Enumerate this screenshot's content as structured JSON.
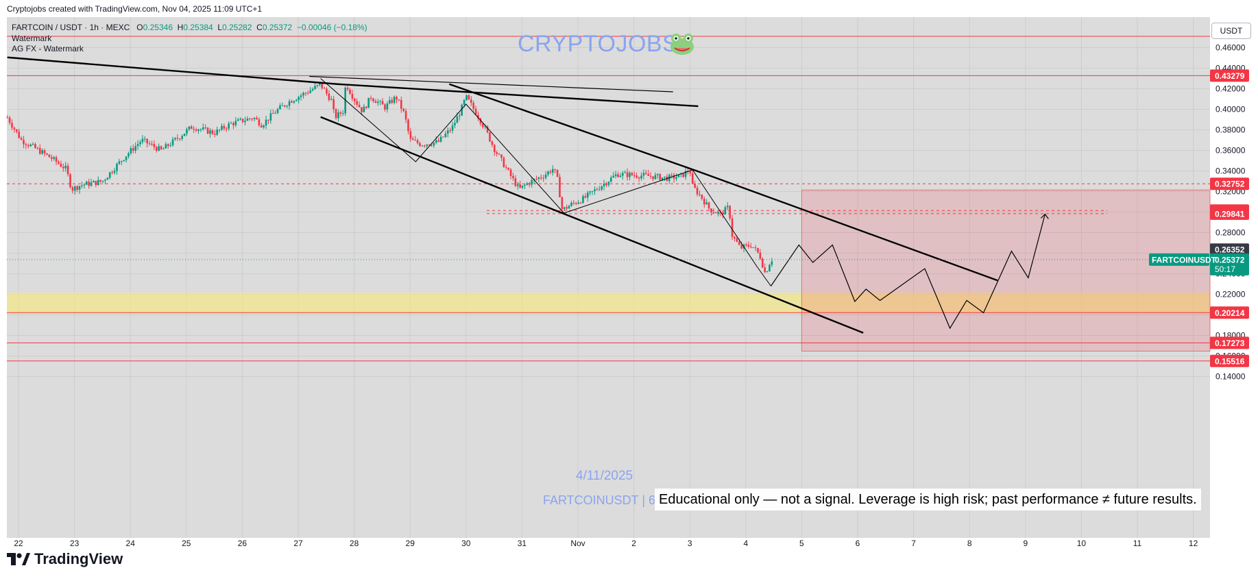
{
  "header": {
    "attribution": "Cryptojobs created with TradingView.com, Nov 04, 2025 11:09 UTC+1"
  },
  "legend": {
    "pair": "FARTCOIN / USDT · 1h · MEXC",
    "o_label": "O",
    "o": "0.25346",
    "h_label": "H",
    "h": "0.25384",
    "l_label": "L",
    "l": "0.25282",
    "c_label": "C",
    "c": "0.25372",
    "change": "−0.00046 (−0.18%)",
    "indicator_1": "Watermark",
    "indicator_2": "AG FX - Watermark"
  },
  "watermarks": {
    "title": "CRYPTOJOBS",
    "date": "4/11/2025",
    "symbol": "FARTCOINUSDT | 6"
  },
  "disclaimer": "Educational only — not a signal. Leverage is high risk; past performance ≠ future results.",
  "currency_button": "USDT",
  "brand": "TradingView",
  "colors": {
    "background": "#dcdcdc",
    "up": "#089981",
    "down": "#f23645",
    "level_line": "#f23645",
    "zone_fill": "rgba(242,54,69,0.17)",
    "support_zone": "rgba(249,234,120,0.6)",
    "watermark": "#8aa4ef"
  },
  "chart_data": {
    "type": "candlestick",
    "symbol": "FARTCOINUSDT",
    "timeframe": "1h",
    "ylim": [
      0.135,
      0.472
    ],
    "yticks": [
      "0.46000",
      "0.44000",
      "0.42000",
      "0.40000",
      "0.38000",
      "0.36000",
      "0.34000",
      "0.32000",
      "0.30000",
      "0.28000",
      "0.26000",
      "0.24000",
      "0.22000",
      "0.20000",
      "0.18000",
      "0.16000",
      "0.14000"
    ],
    "xticks": [
      {
        "label": "22",
        "t": 0
      },
      {
        "label": "23",
        "t": 1
      },
      {
        "label": "24",
        "t": 2
      },
      {
        "label": "25",
        "t": 3
      },
      {
        "label": "26",
        "t": 4
      },
      {
        "label": "27",
        "t": 5
      },
      {
        "label": "28",
        "t": 6
      },
      {
        "label": "29",
        "t": 7
      },
      {
        "label": "30",
        "t": 8
      },
      {
        "label": "31",
        "t": 9
      },
      {
        "label": "Nov",
        "t": 10
      },
      {
        "label": "2",
        "t": 11
      },
      {
        "label": "3",
        "t": 12
      },
      {
        "label": "4",
        "t": 13
      },
      {
        "label": "5",
        "t": 14
      },
      {
        "label": "6",
        "t": 15
      },
      {
        "label": "7",
        "t": 16
      },
      {
        "label": "8",
        "t": 17
      },
      {
        "label": "9",
        "t": 18
      },
      {
        "label": "10",
        "t": 19
      },
      {
        "label": "11",
        "t": 20
      },
      {
        "label": "12",
        "t": 21
      }
    ],
    "price_anchors": [
      [
        -0.2,
        0.392
      ],
      [
        0.05,
        0.37
      ],
      [
        0.3,
        0.362
      ],
      [
        0.6,
        0.352
      ],
      [
        0.85,
        0.342
      ],
      [
        0.95,
        0.322
      ],
      [
        1.1,
        0.326
      ],
      [
        1.5,
        0.33
      ],
      [
        1.9,
        0.354
      ],
      [
        2.2,
        0.37
      ],
      [
        2.55,
        0.36
      ],
      [
        2.75,
        0.368
      ],
      [
        3.1,
        0.383
      ],
      [
        3.5,
        0.377
      ],
      [
        3.8,
        0.386
      ],
      [
        4.2,
        0.392
      ],
      [
        4.35,
        0.385
      ],
      [
        4.6,
        0.398
      ],
      [
        4.85,
        0.408
      ],
      [
        5.2,
        0.418
      ],
      [
        5.4,
        0.424
      ],
      [
        5.6,
        0.408
      ],
      [
        5.65,
        0.392
      ],
      [
        5.8,
        0.398
      ],
      [
        5.85,
        0.425
      ],
      [
        6.0,
        0.41
      ],
      [
        6.15,
        0.398
      ],
      [
        6.3,
        0.412
      ],
      [
        6.55,
        0.402
      ],
      [
        6.75,
        0.412
      ],
      [
        6.9,
        0.395
      ],
      [
        7.0,
        0.37
      ],
      [
        7.2,
        0.366
      ],
      [
        7.5,
        0.368
      ],
      [
        7.75,
        0.382
      ],
      [
        7.9,
        0.398
      ],
      [
        8.0,
        0.412
      ],
      [
        8.2,
        0.395
      ],
      [
        8.35,
        0.38
      ],
      [
        8.5,
        0.362
      ],
      [
        8.8,
        0.335
      ],
      [
        8.95,
        0.322
      ],
      [
        9.1,
        0.328
      ],
      [
        9.4,
        0.336
      ],
      [
        9.55,
        0.342
      ],
      [
        9.62,
        0.336
      ],
      [
        9.72,
        0.302
      ],
      [
        9.9,
        0.308
      ],
      [
        10.1,
        0.313
      ],
      [
        10.4,
        0.325
      ],
      [
        10.7,
        0.337
      ],
      [
        11.0,
        0.336
      ],
      [
        11.3,
        0.335
      ],
      [
        11.6,
        0.333
      ],
      [
        11.85,
        0.335
      ],
      [
        12.0,
        0.342
      ],
      [
        12.05,
        0.325
      ],
      [
        12.2,
        0.315
      ],
      [
        12.35,
        0.303
      ],
      [
        12.55,
        0.298
      ],
      [
        12.7,
        0.305
      ],
      [
        12.75,
        0.278
      ],
      [
        12.9,
        0.265
      ],
      [
        13.1,
        0.268
      ],
      [
        13.25,
        0.258
      ],
      [
        13.35,
        0.24
      ],
      [
        13.45,
        0.254
      ],
      [
        13.5,
        0.2537
      ]
    ],
    "levels": [
      {
        "price": 0.471,
        "style": "solid",
        "label": ""
      },
      {
        "price": 0.43279,
        "style": "solid",
        "label": "0.43279"
      },
      {
        "price": 0.32752,
        "style": "dashed",
        "label": "0.32752"
      },
      {
        "price": 0.30147,
        "style": "dashed",
        "label": "0.30147"
      },
      {
        "price": 0.29841,
        "style": "dashed",
        "label": "0.29841"
      },
      {
        "price": 0.20214,
        "style": "solid",
        "label": "0.20214"
      },
      {
        "price": 0.17273,
        "style": "solid",
        "label": "0.17273"
      },
      {
        "price": 0.15516,
        "style": "solid",
        "label": "0.15516"
      }
    ],
    "badges": [
      {
        "label": "0.26352",
        "price": 0.26352,
        "color": "#363a45"
      },
      {
        "label": "0.25372",
        "price": 0.25372,
        "color": "#089981"
      }
    ],
    "current": {
      "name": "FARTCOINUSDT",
      "price": "0.25372",
      "countdown": "50:17"
    },
    "drawings": {
      "long_trend_1": [
        [
          -0.2,
          0.4505
        ],
        [
          5.7,
          0.4245
        ],
        [
          12.15,
          0.403
        ]
      ],
      "long_trend_2": [
        [
          5.2,
          0.432
        ],
        [
          11.7,
          0.417
        ]
      ],
      "channel_upper": [
        [
          7.7,
          0.4245
        ],
        [
          12.1,
          0.3405
        ],
        [
          17.5,
          0.2335
        ]
      ],
      "channel_lower": [
        [
          5.4,
          0.3925
        ],
        [
          15.1,
          0.1825
        ]
      ],
      "zigzag_past": [
        [
          5.4,
          0.43
        ],
        [
          7.1,
          0.349
        ],
        [
          8.0,
          0.405
        ],
        [
          9.75,
          0.299
        ],
        [
          12.05,
          0.341
        ],
        [
          13.2,
          0.247
        ],
        [
          13.45,
          0.228
        ]
      ],
      "projection": [
        [
          13.45,
          0.228
        ],
        [
          13.95,
          0.268
        ],
        [
          14.2,
          0.251
        ],
        [
          14.55,
          0.268
        ],
        [
          14.95,
          0.213
        ],
        [
          15.15,
          0.225
        ],
        [
          15.4,
          0.214
        ],
        [
          16.2,
          0.245
        ],
        [
          16.65,
          0.187
        ],
        [
          16.95,
          0.214
        ],
        [
          17.25,
          0.202
        ],
        [
          17.75,
          0.262
        ],
        [
          18.05,
          0.236
        ],
        [
          18.35,
          0.298
        ]
      ],
      "risk_zone": {
        "t_start": 14.0,
        "price_top": 0.3215,
        "price_bottom": 0.1647
      },
      "support_zone": {
        "price_top": 0.2215,
        "price_bottom": 0.2015
      }
    }
  }
}
